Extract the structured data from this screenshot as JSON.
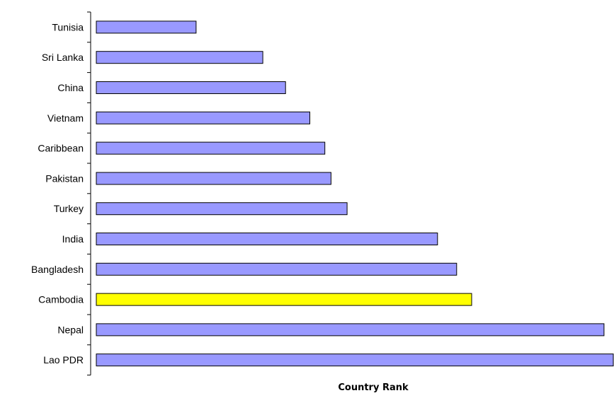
{
  "chart_data": {
    "type": "bar",
    "orientation": "horizontal",
    "categories": [
      "Tunisia",
      "Sri Lanka",
      "China",
      "Vietnam",
      "Caribbean",
      "Pakistan",
      "Turkey",
      "India",
      "Bangladesh",
      "Cambodia",
      "Nepal",
      "Lao PDR"
    ],
    "values": [
      19.3,
      32.2,
      36.6,
      41.3,
      44.2,
      45.4,
      48.5,
      66.0,
      69.7,
      72.6,
      98.2,
      100
    ],
    "highlight_category": "Cambodia",
    "title": "",
    "xlabel": "Country Rank",
    "ylabel": "",
    "xlim": [
      0,
      100
    ],
    "x_tick_labels_shown": false,
    "grid": false,
    "legend": "none",
    "colors": {
      "bar_fill": "#9999ff",
      "bar_highlight": "#ffff00",
      "bar_stroke": "#000000",
      "axis": "#000000",
      "background": "#ffffff"
    }
  }
}
